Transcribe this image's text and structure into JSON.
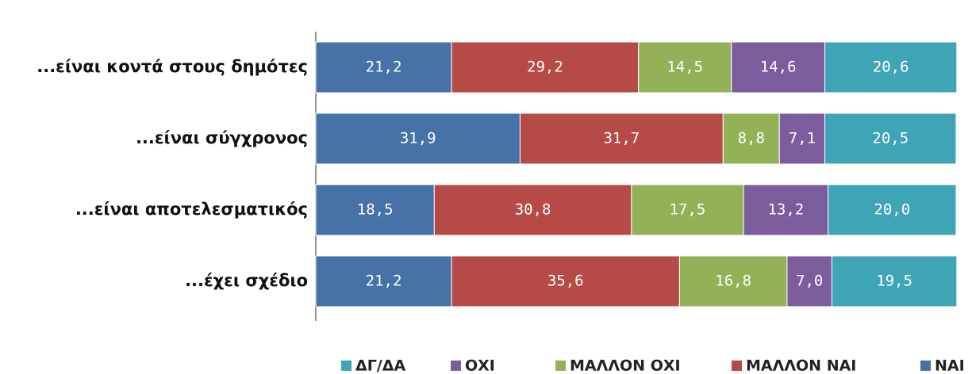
{
  "chart_data": {
    "type": "stacked-bar-horizontal",
    "categories": [
      "...είναι κοντά στους δημότες",
      "...είναι σύγχρονος",
      "...είναι αποτελεσματικός",
      "...έχει σχέδιο"
    ],
    "series": [
      {
        "name": "ΝΑΙ",
        "color": "#4672a8",
        "values": [
          21.2,
          31.9,
          18.5,
          21.2
        ],
        "value_labels": [
          "21,2",
          "31,9",
          "18,5",
          "21,2"
        ]
      },
      {
        "name": "ΜΑΛΛΟΝ ΝΑΙ",
        "color": "#b54a47",
        "values": [
          29.2,
          31.7,
          30.8,
          35.6
        ],
        "value_labels": [
          "29,2",
          "31,7",
          "30,8",
          "35,6"
        ]
      },
      {
        "name": "ΜΑΛΛΟΝ ΟΧΙ",
        "color": "#93b257",
        "values": [
          14.5,
          8.8,
          17.5,
          16.8
        ],
        "value_labels": [
          "14,5",
          "8,8",
          "17,5",
          "16,8"
        ]
      },
      {
        "name": "ΟΧΙ",
        "color": "#7b5d9e",
        "values": [
          14.6,
          7.1,
          13.2,
          7.0
        ],
        "value_labels": [
          "14,6",
          "7,1",
          "13,2",
          "7,0"
        ]
      },
      {
        "name": "ΔΓ/ΔΑ",
        "color": "#3fa4b5",
        "values": [
          20.6,
          20.5,
          20.0,
          19.5
        ],
        "value_labels": [
          "20,6",
          "20,5",
          "20,0",
          "19,5"
        ]
      }
    ],
    "xlim": [
      0,
      100
    ]
  }
}
